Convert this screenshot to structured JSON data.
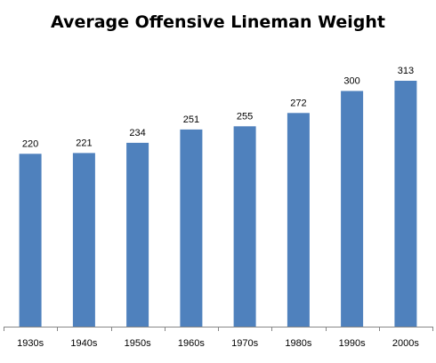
{
  "chart_data": {
    "type": "bar",
    "title": "Average Offensive Lineman Weight",
    "xlabel": "",
    "ylabel": "",
    "categories": [
      "1930s",
      "1940s",
      "1950s",
      "1960s",
      "1970s",
      "1980s",
      "1990s",
      "2000s"
    ],
    "values": [
      220,
      221,
      234,
      251,
      255,
      272,
      300,
      313
    ],
    "ylim": [
      0,
      350
    ],
    "grid": false,
    "legend": "none",
    "data_labels": true,
    "bar_color": "#4f81bd"
  }
}
